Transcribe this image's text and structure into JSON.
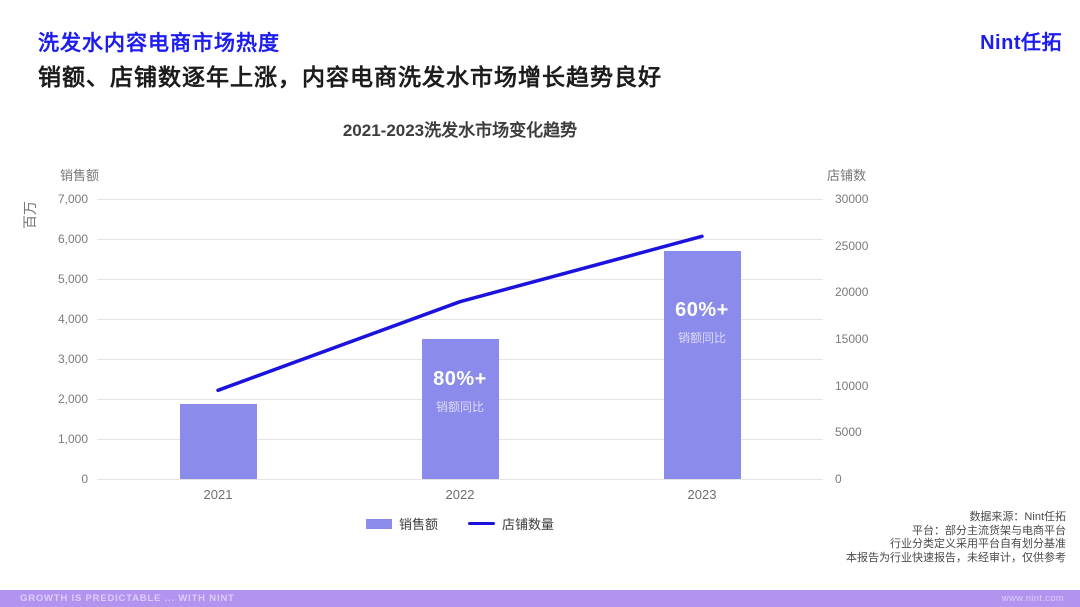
{
  "page": {
    "title": "洗发水内容电商市场热度",
    "subtitle": "销额、店铺数逐年上涨，内容电商洗发水市场增长趋势良好",
    "logo": "Nint任拓"
  },
  "chart_data": {
    "type": "bar",
    "title": "2021-2023洗发水市场变化趋势",
    "categories": [
      "2021",
      "2022",
      "2023"
    ],
    "series": [
      {
        "name": "销售额",
        "type": "bar",
        "axis": "left",
        "values": [
          1870,
          3500,
          5700
        ],
        "color": "#8a8bea"
      },
      {
        "name": "店铺数量",
        "type": "line",
        "axis": "right",
        "values": [
          9500,
          19000,
          26000
        ],
        "color": "#1b13dd"
      }
    ],
    "annotations": [
      {
        "category": "2022",
        "headline": "80%+",
        "subline": "销额同比"
      },
      {
        "category": "2023",
        "headline": "60%+",
        "subline": "销额同比"
      }
    ],
    "left_axis": {
      "label": "销售额",
      "unit": "百万",
      "max": 7000,
      "tick_values": [
        7000,
        6000,
        5000,
        4000,
        3000,
        2000,
        1000,
        0
      ],
      "tick_labels": [
        "7,000",
        "6,000",
        "5,000",
        "4,000",
        "3,000",
        "2,000",
        "1,000",
        "0"
      ]
    },
    "right_axis": {
      "label": "店铺数",
      "max": 30000,
      "tick_values": [
        30000,
        25000,
        20000,
        15000,
        10000,
        5000,
        0
      ],
      "tick_labels": [
        "30000",
        "25000",
        "20000",
        "15000",
        "10000",
        "5000",
        "0"
      ]
    },
    "grid": true,
    "legend_position": "bottom"
  },
  "legend": [
    {
      "label": "销售额",
      "swatch": "bar"
    },
    {
      "label": "店铺数量",
      "swatch": "line"
    }
  ],
  "source_notes": [
    "数据来源：Nint任拓",
    "平台：部分主流货架与电商平台",
    "行业分类定义采用平台自有划分基准",
    "本报告为行业快速报告，未经审计，仅供参考"
  ],
  "footer": {
    "left": "GROWTH IS PREDICTABLE ... WITH NINT",
    "right": "www.nint.com"
  },
  "colors": {
    "accent_blue": "#1d1df0",
    "bar_purple": "#8a8bea",
    "line_blue": "#1b13dd",
    "footer_purple": "#b294f0"
  }
}
